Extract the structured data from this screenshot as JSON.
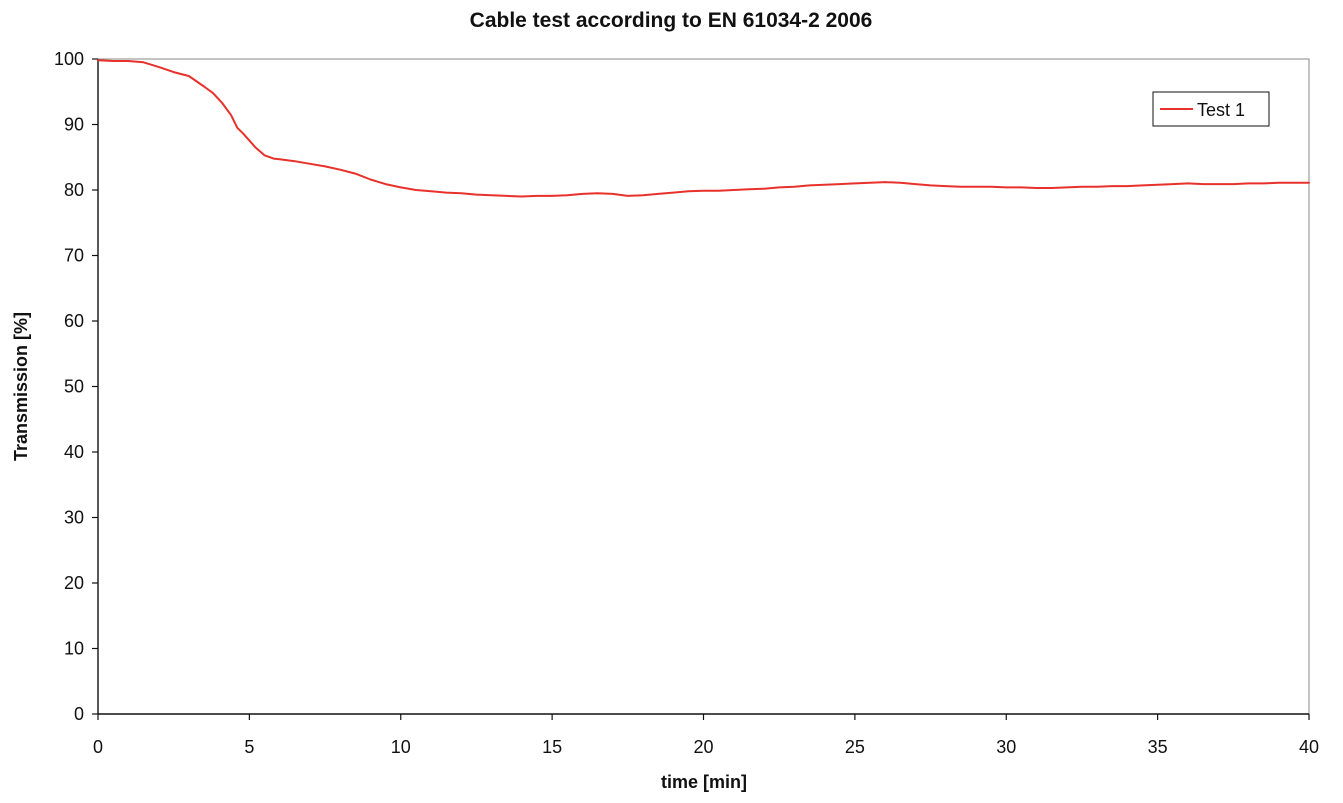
{
  "chart_data": {
    "type": "line",
    "title": "Cable test according to EN 61034-2 2006",
    "xlabel": "time [min]",
    "ylabel": "Transmission [%]",
    "xlim": [
      0,
      40
    ],
    "ylim": [
      0,
      100
    ],
    "xticks": [
      0,
      5,
      10,
      15,
      20,
      25,
      30,
      35,
      40
    ],
    "yticks": [
      0,
      10,
      20,
      30,
      40,
      50,
      60,
      70,
      80,
      90,
      100
    ],
    "grid": false,
    "legend_position": "top-right",
    "series": [
      {
        "name": "Test 1",
        "color": "#e8312b",
        "x": [
          0,
          0.5,
          1,
          1.5,
          2,
          2.5,
          3,
          3.5,
          3.8,
          4.1,
          4.4,
          4.6,
          4.8,
          5.2,
          5.5,
          5.8,
          6,
          6.5,
          7,
          7.5,
          8,
          8.5,
          9,
          9.5,
          10,
          10.5,
          11,
          11.5,
          12,
          12.5,
          13,
          13.5,
          14,
          14.5,
          15,
          15.5,
          16,
          16.5,
          17,
          17.5,
          18,
          18.5,
          19,
          19.5,
          20,
          20.5,
          21,
          21.5,
          22,
          22.5,
          23,
          23.5,
          24,
          24.5,
          25,
          25.5,
          26,
          26.5,
          27,
          27.5,
          28,
          28.5,
          29,
          29.5,
          30,
          30.5,
          31,
          31.5,
          32,
          32.5,
          33,
          33.5,
          34,
          34.5,
          35,
          35.5,
          36,
          36.5,
          37,
          37.5,
          38,
          38.5,
          39,
          39.5,
          40
        ],
        "y": [
          99.8,
          99.7,
          99.7,
          99.5,
          98.8,
          98,
          97.4,
          95.8,
          94.8,
          93.3,
          91.4,
          89.5,
          88.6,
          86.5,
          85.3,
          84.8,
          84.7,
          84.4,
          84,
          83.6,
          83.1,
          82.5,
          81.6,
          80.9,
          80.4,
          80,
          79.8,
          79.6,
          79.5,
          79.3,
          79.2,
          79.1,
          79,
          79.1,
          79.1,
          79.2,
          79.4,
          79.5,
          79.4,
          79.1,
          79.2,
          79.4,
          79.6,
          79.8,
          79.9,
          79.9,
          80,
          80.1,
          80.2,
          80.4,
          80.5,
          80.7,
          80.8,
          80.9,
          81,
          81.1,
          81.2,
          81.1,
          80.9,
          80.7,
          80.6,
          80.5,
          80.5,
          80.5,
          80.4,
          80.4,
          80.3,
          80.3,
          80.4,
          80.5,
          80.5,
          80.6,
          80.6,
          80.7,
          80.8,
          80.9,
          81,
          80.9,
          80.9,
          80.9,
          81,
          81,
          81.1,
          81.1,
          81.1
        ]
      }
    ]
  }
}
